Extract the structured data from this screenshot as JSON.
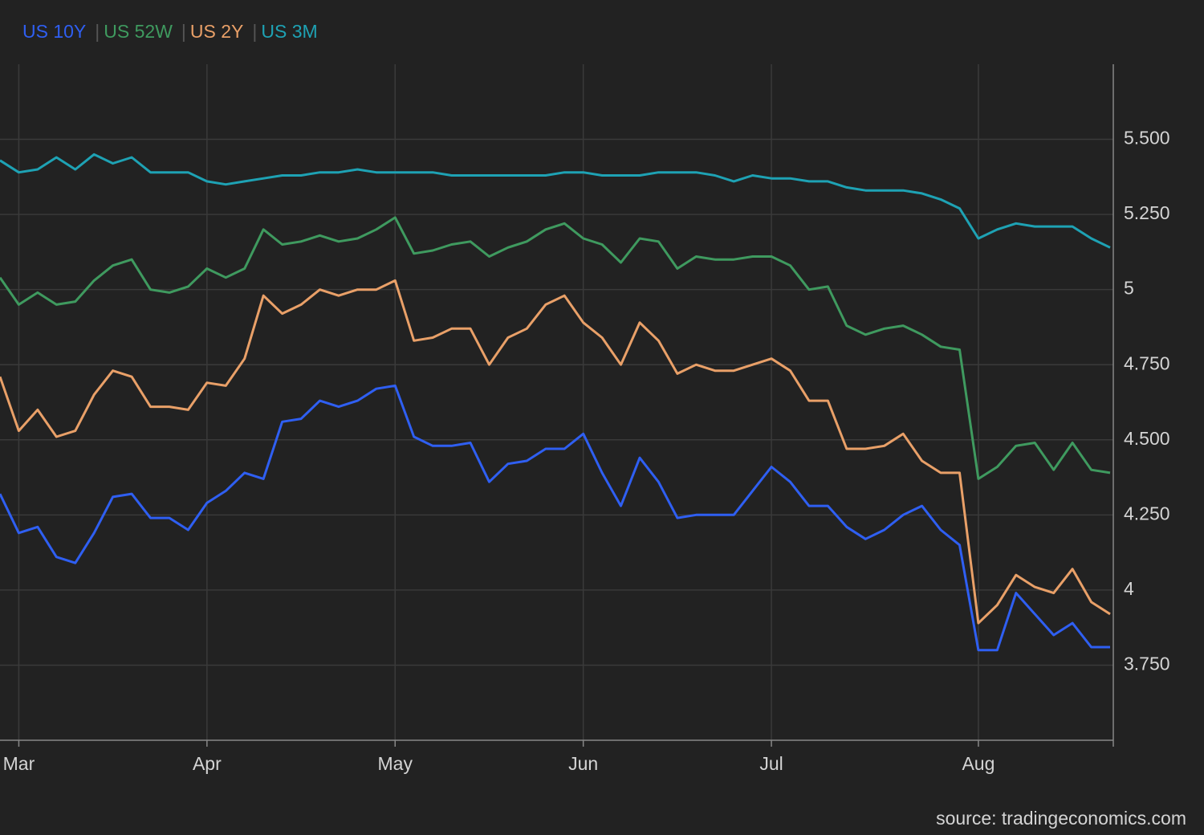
{
  "chart_data": {
    "type": "line",
    "categories": [
      null,
      "Mar",
      null,
      null,
      null,
      null,
      null,
      null,
      null,
      null,
      null,
      "Apr",
      null,
      null,
      null,
      null,
      null,
      null,
      null,
      null,
      null,
      "May",
      null,
      null,
      null,
      null,
      null,
      null,
      null,
      null,
      null,
      "Jun",
      null,
      null,
      null,
      null,
      null,
      null,
      null,
      null,
      null,
      "Jul",
      null,
      null,
      null,
      null,
      null,
      null,
      null,
      null,
      null,
      null,
      "Aug",
      null,
      null,
      null,
      null,
      null,
      null,
      null
    ],
    "series": [
      {
        "name": "US 10Y",
        "color": "#2f5ff2",
        "values": [
          4.32,
          4.19,
          4.21,
          4.11,
          4.09,
          4.19,
          4.31,
          4.32,
          4.24,
          4.24,
          4.2,
          4.29,
          4.33,
          4.39,
          4.37,
          4.56,
          4.57,
          4.63,
          4.61,
          4.63,
          4.67,
          4.68,
          4.51,
          4.48,
          4.48,
          4.49,
          4.36,
          4.42,
          4.43,
          4.47,
          4.47,
          4.52,
          4.39,
          4.28,
          4.44,
          4.36,
          4.24,
          4.25,
          4.25,
          4.25,
          4.33,
          4.41,
          4.36,
          4.28,
          4.28,
          4.21,
          4.17,
          4.2,
          4.25,
          4.28,
          4.2,
          4.15,
          3.8,
          3.8,
          3.99,
          3.92,
          3.85,
          3.89,
          3.81,
          3.81
        ]
      },
      {
        "name": "US 52W",
        "color": "#3f9a5f",
        "values": [
          5.04,
          4.95,
          4.99,
          4.95,
          4.96,
          5.03,
          5.08,
          5.1,
          5.0,
          4.99,
          5.01,
          5.07,
          5.04,
          5.07,
          5.2,
          5.15,
          5.16,
          5.18,
          5.16,
          5.17,
          5.2,
          5.24,
          5.12,
          5.13,
          5.15,
          5.16,
          5.11,
          5.14,
          5.16,
          5.2,
          5.22,
          5.17,
          5.15,
          5.09,
          5.17,
          5.16,
          5.07,
          5.11,
          5.1,
          5.1,
          5.11,
          5.11,
          5.08,
          5.0,
          5.01,
          4.88,
          4.85,
          4.87,
          4.88,
          4.85,
          4.81,
          4.8,
          4.37,
          4.41,
          4.48,
          4.49,
          4.4,
          4.49,
          4.4,
          4.39
        ]
      },
      {
        "name": "US 2Y",
        "color": "#e9a068",
        "values": [
          4.71,
          4.53,
          4.6,
          4.51,
          4.53,
          4.65,
          4.73,
          4.71,
          4.61,
          4.61,
          4.6,
          4.69,
          4.68,
          4.77,
          4.98,
          4.92,
          4.95,
          5.0,
          4.98,
          5.0,
          5.0,
          5.03,
          4.83,
          4.84,
          4.87,
          4.87,
          4.75,
          4.84,
          4.87,
          4.95,
          4.98,
          4.89,
          4.84,
          4.75,
          4.89,
          4.83,
          4.72,
          4.75,
          4.73,
          4.73,
          4.75,
          4.77,
          4.73,
          4.63,
          4.63,
          4.47,
          4.47,
          4.48,
          4.52,
          4.43,
          4.39,
          4.39,
          3.89,
          3.95,
          4.05,
          4.01,
          3.99,
          4.07,
          3.96,
          3.92
        ]
      },
      {
        "name": "US 3M",
        "color": "#1ea2b4",
        "values": [
          5.43,
          5.39,
          5.4,
          5.44,
          5.4,
          5.45,
          5.42,
          5.44,
          5.39,
          5.39,
          5.39,
          5.36,
          5.35,
          5.36,
          5.37,
          5.38,
          5.38,
          5.39,
          5.39,
          5.4,
          5.39,
          5.39,
          5.39,
          5.39,
          5.38,
          5.38,
          5.38,
          5.38,
          5.38,
          5.38,
          5.39,
          5.39,
          5.38,
          5.38,
          5.38,
          5.39,
          5.39,
          5.39,
          5.38,
          5.36,
          5.38,
          5.37,
          5.37,
          5.36,
          5.36,
          5.34,
          5.33,
          5.33,
          5.33,
          5.32,
          5.3,
          5.27,
          5.17,
          5.2,
          5.22,
          5.21,
          5.21,
          5.21,
          5.17,
          5.14
        ]
      }
    ],
    "ylim": [
      3.5,
      5.75
    ],
    "yticks": [
      {
        "value": 3.75,
        "label": "3.750"
      },
      4,
      {
        "value": 4.25,
        "label": "4.250"
      },
      {
        "value": 4.5,
        "label": "4.500"
      },
      {
        "value": 4.75,
        "label": "4.750"
      },
      5,
      {
        "value": 5.25,
        "label": "5.250"
      },
      {
        "value": 5.5,
        "label": "5.500"
      }
    ],
    "grid": true,
    "source": "source: tradingeconomics.com"
  }
}
